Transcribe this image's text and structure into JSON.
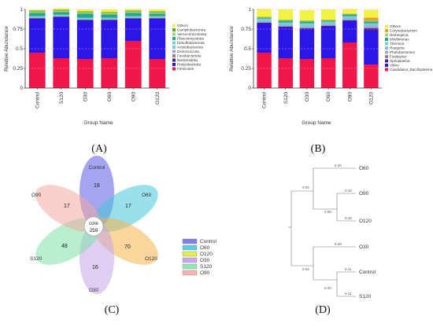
{
  "panels": {
    "A": {
      "letter": "(A)"
    },
    "B": {
      "letter": "(B)"
    },
    "C": {
      "letter": "(C)"
    },
    "D": {
      "letter": "(D)"
    }
  },
  "chart_data": [
    {
      "type": "bar",
      "panel": "A",
      "stacked": true,
      "xlabel": "Group Name",
      "ylabel": "Relative Abundance",
      "ylim": [
        0,
        1
      ],
      "yticks": [
        "0",
        "0.25",
        "0.5",
        "0.75",
        "1"
      ],
      "categories": [
        "Control",
        "S120",
        "O30",
        "O60",
        "O90",
        "O120"
      ],
      "legend_position": "right",
      "series": [
        {
          "name": "Firmicutes",
          "color": "#f0164a",
          "values": [
            0.45,
            0.38,
            0.37,
            0.38,
            0.6,
            0.37
          ]
        },
        {
          "name": "Proteobacteria",
          "color": "#2a16e8",
          "values": [
            0.43,
            0.52,
            0.49,
            0.48,
            0.28,
            0.51
          ]
        },
        {
          "name": "Bacteroidota",
          "color": "#4b1fa0",
          "values": [
            0.005,
            0.005,
            0.005,
            0.005,
            0.005,
            0.005
          ]
        },
        {
          "name": "Fusobacteriota",
          "color": "#8a8a8a",
          "values": [
            0.005,
            0.005,
            0.005,
            0.005,
            0.005,
            0.005
          ]
        },
        {
          "name": "Deinococcota",
          "color": "#b0a0d0",
          "values": [
            0.005,
            0.005,
            0.005,
            0.005,
            0.005,
            0.005
          ]
        },
        {
          "name": "Actinobacteriota",
          "color": "#7ac8e0",
          "values": [
            0.01,
            0.01,
            0.01,
            0.01,
            0.01,
            0.01
          ]
        },
        {
          "name": "Desulfobacterota",
          "color": "#7fd0c0",
          "values": [
            0.01,
            0.01,
            0.01,
            0.01,
            0.01,
            0.01
          ]
        },
        {
          "name": "Planctomycetota",
          "color": "#1fa890",
          "values": [
            0.04,
            0.03,
            0.05,
            0.04,
            0.04,
            0.03
          ]
        },
        {
          "name": "Verrucomicrobiota",
          "color": "#a8d070",
          "values": [
            0.02,
            0.02,
            0.02,
            0.02,
            0.02,
            0.02
          ]
        },
        {
          "name": "Campilobacterota",
          "color": "#5aa83c",
          "values": [
            0.01,
            0.01,
            0.01,
            0.01,
            0.01,
            0.01
          ]
        },
        {
          "name": "Others",
          "color": "#f2f245",
          "values": [
            0.01,
            0.02,
            0.025,
            0.035,
            0.02,
            0.025
          ]
        }
      ]
    },
    {
      "type": "bar",
      "panel": "B",
      "stacked": true,
      "xlabel": "Group Name",
      "ylabel": "Relative Abundance",
      "ylim": [
        0,
        1
      ],
      "yticks": [
        "0",
        "0.25",
        "0.5",
        "0.75",
        "1"
      ],
      "categories": [
        "Control",
        "S120",
        "O30",
        "O60",
        "O90",
        "O120"
      ],
      "legend_position": "right",
      "series": [
        {
          "name": "Candidatus_Bacilloplasma",
          "color": "#f0164a",
          "values": [
            0.45,
            0.38,
            0.37,
            0.38,
            0.58,
            0.3
          ]
        },
        {
          "name": "Vibrio",
          "color": "#2a16e8",
          "values": [
            0.37,
            0.39,
            0.38,
            0.4,
            0.27,
            0.43
          ]
        },
        {
          "name": "Spiroplasma",
          "color": "#4b1fa0",
          "values": [
            0.01,
            0.01,
            0.01,
            0.01,
            0.01,
            0.03
          ]
        },
        {
          "name": "Fusibacter",
          "color": "#8a8a8a",
          "values": [
            0.005,
            0.005,
            0.005,
            0.005,
            0.005,
            0.005
          ]
        },
        {
          "name": "Photobacterium",
          "color": "#b0a0d0",
          "values": [
            0.01,
            0.01,
            0.01,
            0.01,
            0.01,
            0.02
          ]
        },
        {
          "name": "Ruegeria",
          "color": "#7ac8e0",
          "values": [
            0.03,
            0.03,
            0.03,
            0.03,
            0.03,
            0.03
          ]
        },
        {
          "name": "Thermus",
          "color": "#7fd0c0",
          "values": [
            0.01,
            0.01,
            0.02,
            0.01,
            0.01,
            0.01
          ]
        },
        {
          "name": "Motilimonas",
          "color": "#1fa890",
          "values": [
            0.01,
            0.02,
            0.02,
            0.01,
            0.02,
            0.02
          ]
        },
        {
          "name": "Demequina",
          "color": "#a8d070",
          "values": [
            0.005,
            0.01,
            0.01,
            0.01,
            0.005,
            0.01
          ]
        },
        {
          "name": "Corynebacterium",
          "color": "#e6a030",
          "values": [
            0.005,
            0.005,
            0.005,
            0.005,
            0.005,
            0.04
          ]
        },
        {
          "name": "Others",
          "color": "#f2f245",
          "values": [
            0.1,
            0.13,
            0.13,
            0.13,
            0.06,
            0.1
          ]
        }
      ]
    }
  ],
  "venn": {
    "core_label": "core",
    "core_value": "259",
    "petals": [
      {
        "group": "Control",
        "value": "18",
        "color": "#5b5ae6"
      },
      {
        "group": "O60",
        "value": "17",
        "color": "#45c6d8"
      },
      {
        "group": "O120",
        "value": "70",
        "color": "#f5b24a"
      },
      {
        "group": "O30",
        "value": "16",
        "color": "#c3a6e6"
      },
      {
        "group": "S120",
        "value": "48",
        "color": "#7fe0a8"
      },
      {
        "group": "O90",
        "value": "17",
        "color": "#f0a8a0"
      }
    ],
    "legend": [
      {
        "label": "Control",
        "color": "#7f7fe8"
      },
      {
        "label": "O60",
        "color": "#5ccde0"
      },
      {
        "label": "O120",
        "color": "#e2ee4a"
      },
      {
        "label": "O30",
        "color": "#c9a7e8"
      },
      {
        "label": "S120",
        "color": "#8fe6b8"
      },
      {
        "label": "O90",
        "color": "#f2b4ac"
      }
    ]
  },
  "tree": {
    "leaves": [
      "O60",
      "O90",
      "O120",
      "O30",
      "Control",
      "S120"
    ],
    "branch_labels": [
      "0.20",
      "0.04",
      "0.18",
      "0.06",
      "0.18",
      "0.20",
      "0.04",
      "0.11",
      "0.03",
      "0.11"
    ]
  }
}
